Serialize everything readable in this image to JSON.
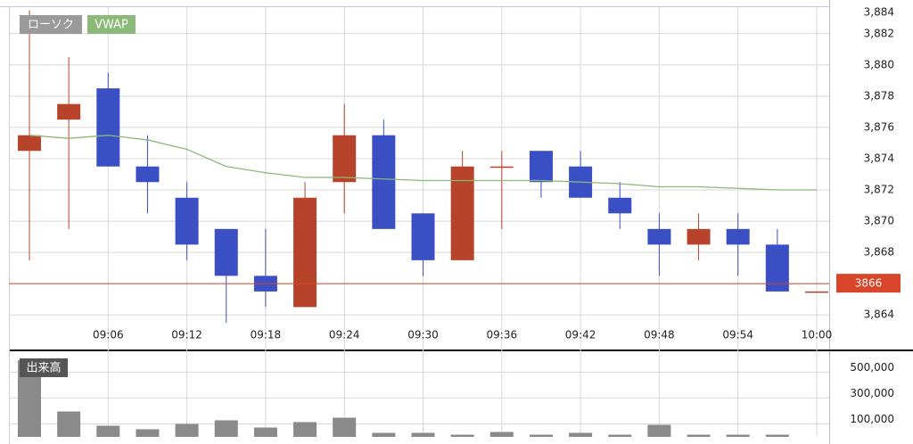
{
  "chart_data": [
    {
      "type": "candlestick",
      "categories": [
        null,
        null,
        "09:06",
        null,
        "09:12",
        null,
        "09:18",
        null,
        "09:24",
        null,
        "09:30",
        null,
        "09:36",
        null,
        "09:42",
        null,
        "09:48",
        null,
        "09:54",
        null,
        "10:00"
      ],
      "series": [
        {
          "name": "ローソク",
          "up_color": "#b8432b",
          "down_color": "#3b4fc4",
          "legend_color": "#9a9a9a",
          "open": [
            3874.5,
            3876.5,
            3878.5,
            3873.5,
            3871.5,
            3869.5,
            3866.5,
            3864.5,
            3872.5,
            3875.5,
            3870.5,
            3867.5,
            3873.5,
            3874.5,
            3873.5,
            3871.5,
            3869.5,
            3868.5,
            3869.5,
            3868.5,
            3865.5
          ],
          "high": [
            3883.5,
            3880.5,
            3879.5,
            3875.5,
            3872.5,
            3869.5,
            3869.5,
            3872.5,
            3877.5,
            3876.5,
            3870.5,
            3874.5,
            3874.5,
            3874.5,
            3874.5,
            3872.5,
            3870.5,
            3870.5,
            3870.5,
            3869.5,
            3865.5
          ],
          "low": [
            3867.5,
            3869.5,
            3873.5,
            3870.5,
            3867.5,
            3863.5,
            3864.5,
            3864.5,
            3870.5,
            3869.5,
            3866.5,
            3867.5,
            3869.5,
            3871.5,
            3871.5,
            3869.5,
            3866.5,
            3867.5,
            3866.5,
            3865.5,
            3865.5
          ],
          "close": [
            3875.5,
            3877.5,
            3873.5,
            3872.5,
            3868.5,
            3866.5,
            3865.5,
            3871.5,
            3875.5,
            3869.5,
            3867.5,
            3873.5,
            3873.5,
            3872.5,
            3871.5,
            3870.5,
            3868.5,
            3869.5,
            3868.5,
            3865.5,
            3865.5
          ]
        },
        {
          "name": "VWAP",
          "type": "line",
          "color": "#8cb878",
          "values": [
            3875.5,
            3875.3,
            3875.5,
            3875.2,
            3874.6,
            3873.5,
            3873.1,
            3872.8,
            3872.8,
            3872.7,
            3872.6,
            3872.6,
            3872.6,
            3872.6,
            3872.5,
            3872.4,
            3872.2,
            3872.2,
            3872.1,
            3872.0,
            3872.0
          ]
        }
      ],
      "ylim": [
        3861.9,
        3883.7
      ],
      "yticks": [
        {
          "value": 3864,
          "label": "3,864"
        },
        {
          "value": 3866,
          "label": "3,866"
        },
        {
          "value": 3868,
          "label": "3,868"
        },
        {
          "value": 3870,
          "label": "3,870"
        },
        {
          "value": 3872,
          "label": "3,872"
        },
        {
          "value": 3874,
          "label": "3,874"
        },
        {
          "value": 3876,
          "label": "3,876"
        },
        {
          "value": 3878,
          "label": "3,878"
        },
        {
          "value": 3880,
          "label": "3,880"
        },
        {
          "value": 3882,
          "label": "3,882"
        },
        {
          "value": 3884,
          "label": "3,884"
        }
      ],
      "grid": true,
      "current_price": 3866,
      "current_price_color": "#d9452a"
    },
    {
      "type": "bar",
      "title": "出来高",
      "color": "#8a8a8a",
      "values": [
        590000,
        196000,
        86000,
        59000,
        100000,
        128000,
        72000,
        114000,
        148000,
        31000,
        31000,
        17000,
        38000,
        17000,
        31000,
        17000,
        93000,
        17000,
        17000,
        17000,
        0
      ],
      "ylim": [
        0,
        640000
      ],
      "yticks": [
        {
          "value": 100000,
          "label": "100,000"
        },
        {
          "value": 300000,
          "label": "300,000"
        },
        {
          "value": 500000,
          "label": "500,000"
        }
      ],
      "grid": true
    }
  ]
}
